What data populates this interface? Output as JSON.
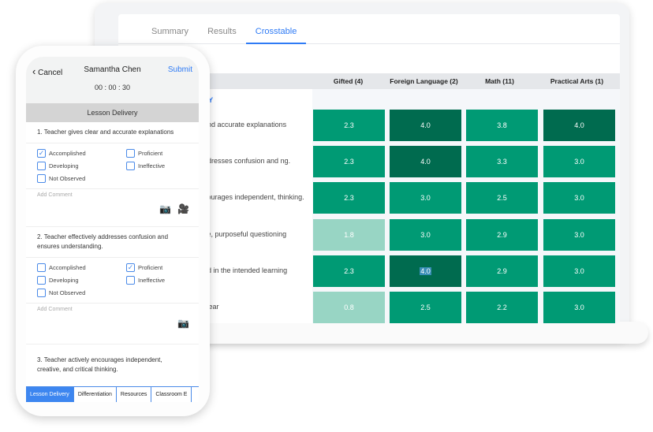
{
  "crosstable": {
    "tabs": [
      "Summary",
      "Results",
      "Crosstable"
    ],
    "active_tab": "Crosstable",
    "columns": [
      "Gifted (4)",
      "Foreign Language (2)",
      "Math (11)",
      "Practical Arts (1)"
    ],
    "category": "RY",
    "rows": [
      {
        "label": "and accurate explanations",
        "values": [
          "2.3",
          "4.0",
          "3.8",
          "4.0"
        ]
      },
      {
        "label": "ddresses confusion and ng.",
        "values": [
          "2.3",
          "4.0",
          "3.3",
          "3.0"
        ]
      },
      {
        "label": "courages independent, thinking.",
        "values": [
          "2.3",
          "3.0",
          "2.5",
          "3.0"
        ]
      },
      {
        "label": "ve, purposeful questioning",
        "values": [
          "1.8",
          "3.0",
          "2.9",
          "3.0"
        ]
      },
      {
        "label": "ed in the intended learning",
        "values": [
          "2.3",
          "4.0",
          "2.9",
          "3.0"
        ]
      },
      {
        "label": "clear",
        "values": [
          "0.8",
          "2.5",
          "2.2",
          "3.0"
        ]
      }
    ],
    "colors": {
      "low": "#98d5c4",
      "mid": "#009a74",
      "high": "#006b4f"
    }
  },
  "phone": {
    "cancel": "Cancel",
    "name": "Samantha Chen",
    "submit": "Submit",
    "timer": "00 : 00 : 30",
    "section": "Lesson Delivery",
    "questions": [
      {
        "text": "1. Teacher gives clear and accurate explanations",
        "checked": "Accomplished"
      },
      {
        "text": "2. Teacher effectively addresses confusion and ensures understanding.",
        "checked": "Proficient"
      },
      {
        "text": "3. Teacher actively encourages independent, creative, and critical thinking."
      }
    ],
    "options": [
      "Accomplished",
      "Proficient",
      "Developing",
      "Ineffective",
      "Not Observed"
    ],
    "comment_placeholder": "Add Comment",
    "bottom_tabs": [
      "Lesson Delivery",
      "Differentiation",
      "Resources",
      "Classroom E"
    ]
  }
}
